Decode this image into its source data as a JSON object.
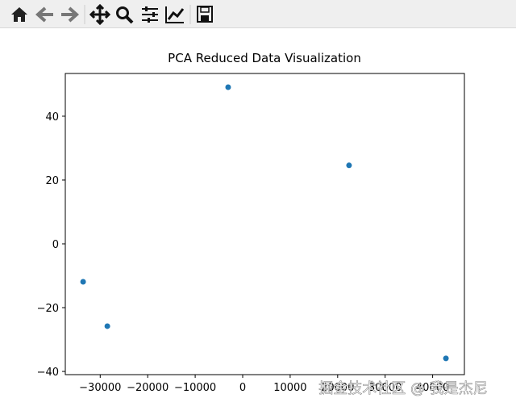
{
  "chart_data": {
    "type": "scatter",
    "title": "PCA Reduced Data Visualization",
    "x": [
      -33600,
      -28500,
      -3060,
      22400,
      42800
    ],
    "values": [
      -11.9,
      -25.8,
      49.1,
      24.6,
      -35.9
    ],
    "color": "#1f77b4",
    "xlim": [
      -37350,
      46690
    ],
    "ylim": [
      -41.0,
      53.4
    ],
    "xticks": [
      {
        "value": -30000,
        "label": "−30000"
      },
      {
        "value": -20000,
        "label": "−20000"
      },
      {
        "value": -10000,
        "label": "−10000"
      },
      0,
      10000,
      20000,
      30000,
      40000
    ],
    "yticks": [
      {
        "value": -40,
        "label": "−40"
      },
      {
        "value": -20,
        "label": "−20"
      },
      0,
      20,
      40
    ],
    "grid": false,
    "watermark": "掘金技术社区 @ 我是杰尼"
  }
}
